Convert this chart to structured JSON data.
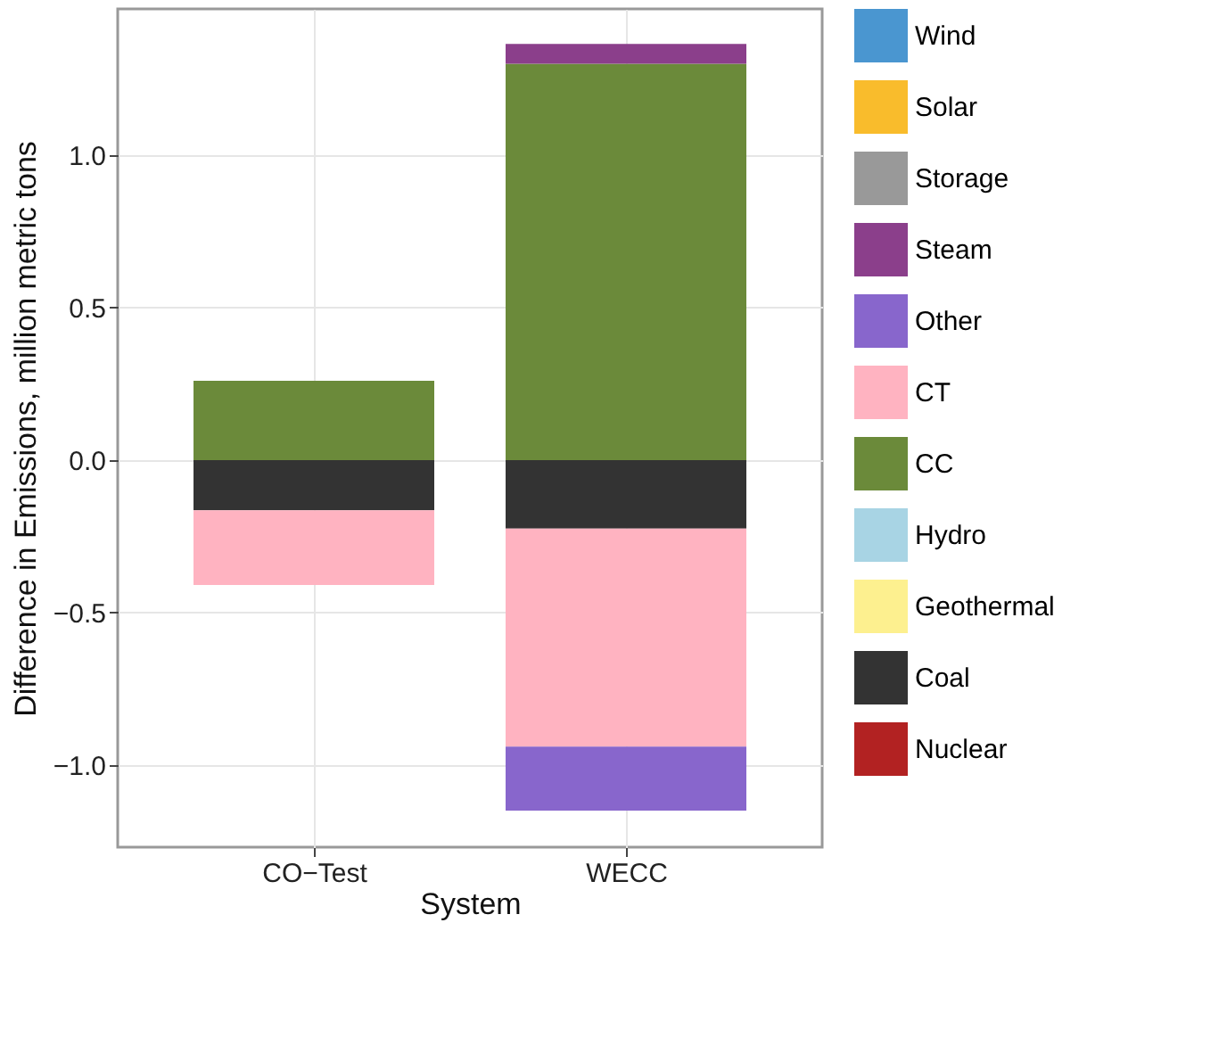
{
  "chart_data": {
    "type": "bar",
    "stacked": true,
    "xlabel": "System",
    "ylabel": "Difference in Emissions, million metric tons",
    "categories": [
      "CO−Test",
      "WECC"
    ],
    "series": [
      {
        "name": "Nuclear",
        "color": "#b22222",
        "values": [
          0,
          0
        ]
      },
      {
        "name": "Coal",
        "color": "#333333",
        "values": [
          -0.165,
          -0.225
        ]
      },
      {
        "name": "Geothermal",
        "color": "#fdf08f",
        "values": [
          0,
          0
        ]
      },
      {
        "name": "Hydro",
        "color": "#a8d4e4",
        "values": [
          0,
          0
        ]
      },
      {
        "name": "CC",
        "color": "#6b8a3a",
        "values": [
          0.26,
          1.3
        ]
      },
      {
        "name": "CT",
        "color": "#ffb3c1",
        "values": [
          -0.245,
          -0.715
        ]
      },
      {
        "name": "Other",
        "color": "#8866cc",
        "values": [
          0,
          -0.21
        ]
      },
      {
        "name": "Steam",
        "color": "#8b3f8b",
        "values": [
          0,
          0.065
        ]
      },
      {
        "name": "Storage",
        "color": "#999999",
        "values": [
          0,
          0
        ]
      },
      {
        "name": "Solar",
        "color": "#f9bc2c",
        "values": [
          0,
          0
        ]
      },
      {
        "name": "Wind",
        "color": "#4a96d0",
        "values": [
          0,
          0
        ]
      }
    ],
    "ylim": [
      -1.27,
      1.48
    ],
    "yticks": [
      {
        "value": -1,
        "label": "−1.0"
      },
      -0.5,
      {
        "value": 0,
        "label": "0.0"
      },
      0.5,
      {
        "value": 1,
        "label": "1.0"
      }
    ],
    "grid": true,
    "legend": "right"
  }
}
